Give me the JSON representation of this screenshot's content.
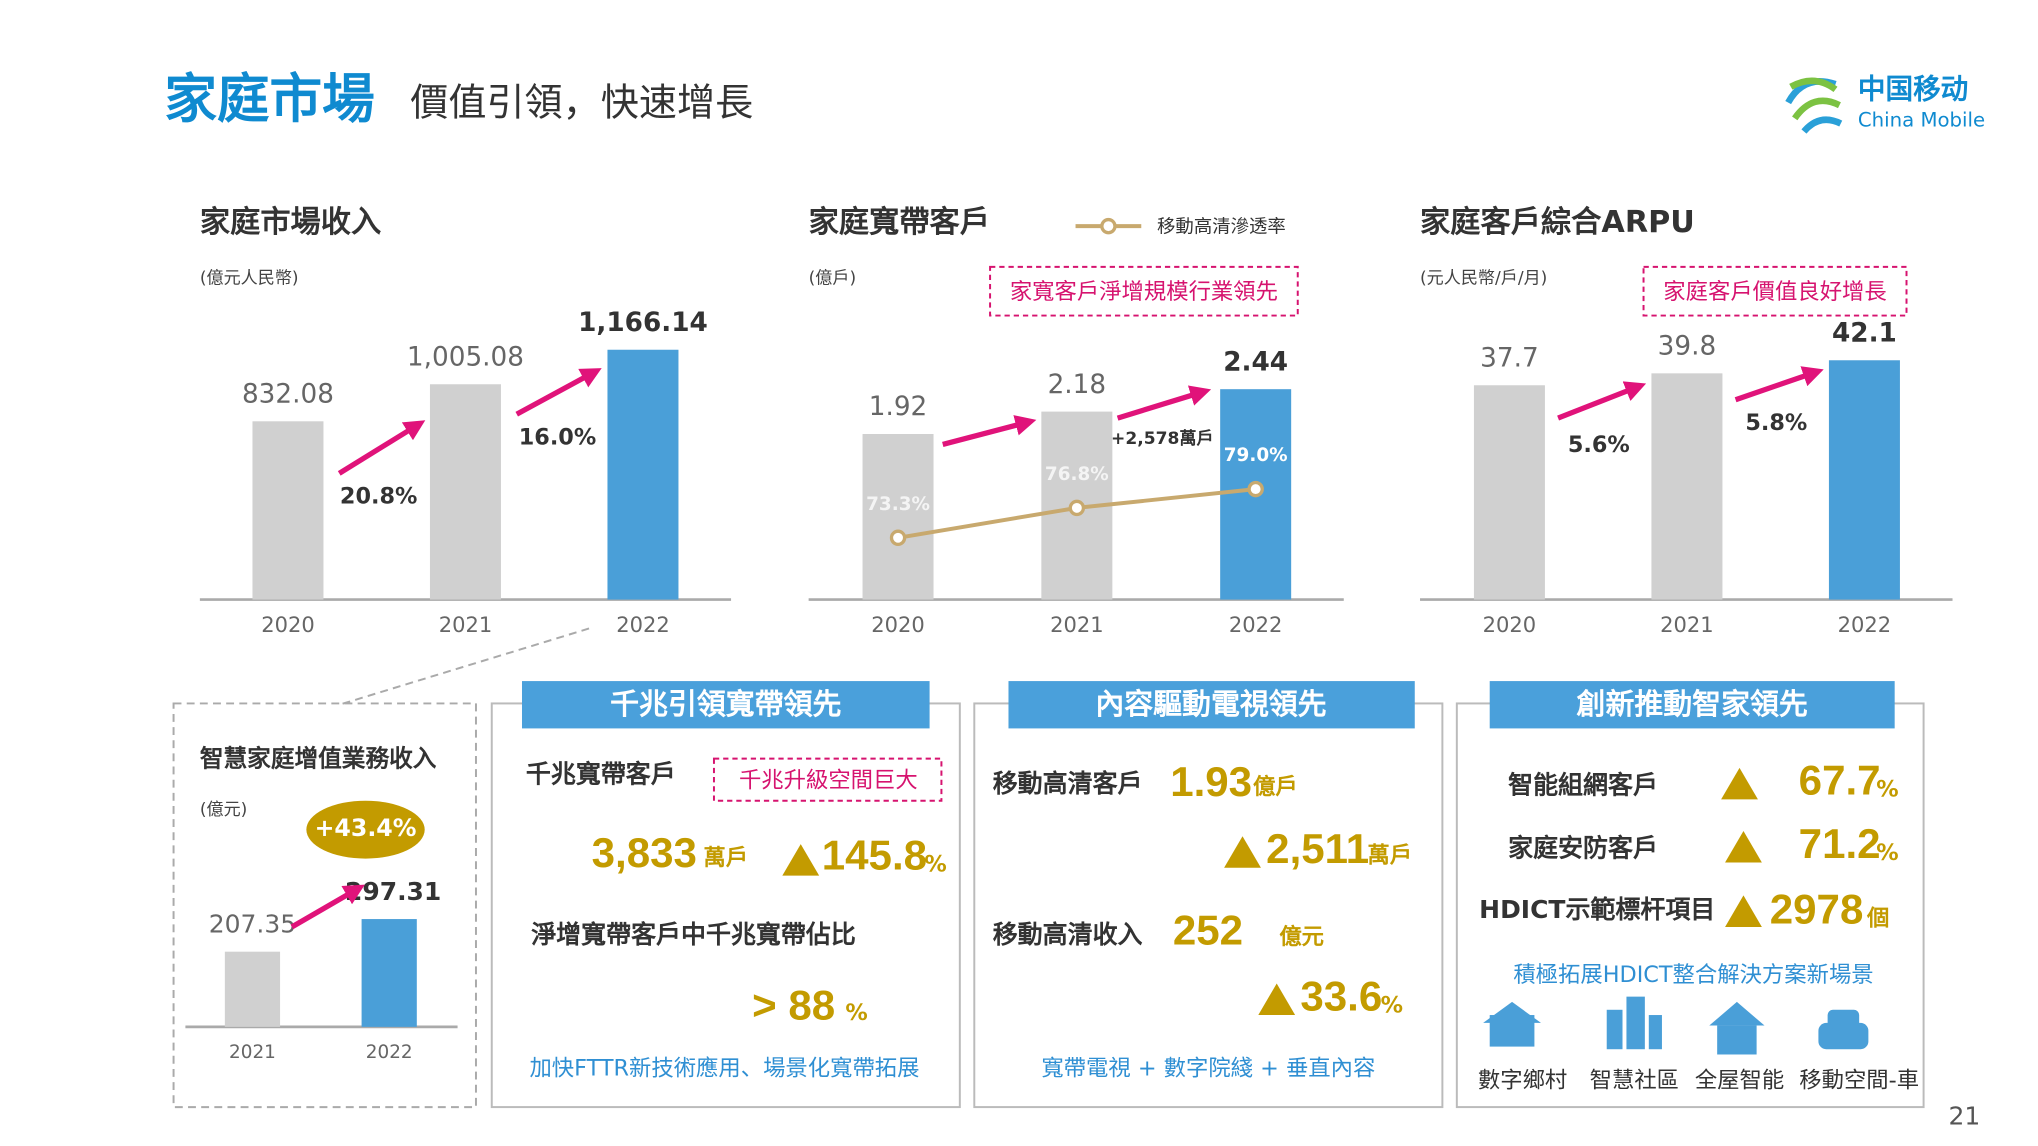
{
  "header": {
    "title": "家庭市場",
    "subtitle": "價值引領，快速增長",
    "logo_cn": "中国移动",
    "logo_en": "China Mobile",
    "page": "21"
  },
  "chart_data": [
    {
      "type": "bar",
      "title": "家庭市場收入",
      "subtitle": "(億元人民幣)",
      "categories": [
        "2020",
        "2021",
        "2022"
      ],
      "values": [
        832.08,
        1005.08,
        1166.14
      ],
      "value_labels": [
        "832.08",
        "1,005.08",
        "1,166.14"
      ],
      "colors": [
        "#d0d0d0",
        "#d0d0d0",
        "#4a9fd8"
      ],
      "annotations": [
        "20.8%",
        "16.0%"
      ]
    },
    {
      "type": "combo",
      "title": "家庭寬帶客戶",
      "subtitle": "(億戶)",
      "callout": "家寬客戶淨增規模行業領先",
      "categories": [
        "2020",
        "2021",
        "2022"
      ],
      "series": [
        {
          "type": "bar",
          "values": [
            1.92,
            2.18,
            2.44
          ],
          "colors": [
            "#d0d0d0",
            "#d0d0d0",
            "#4a9fd8"
          ]
        },
        {
          "name": "移動高清滲透率",
          "type": "line",
          "axis": "y2",
          "color": "#c8a96e",
          "values": [
            73.3,
            76.8,
            79.0
          ],
          "value_labels": [
            "73.3%",
            "76.8%",
            "79.0%"
          ]
        }
      ],
      "annotations": [
        "+2,578萬戶"
      ]
    },
    {
      "type": "bar",
      "title": "家庭客戶綜合ARPU",
      "subtitle": "(元人民幣/戶/月)",
      "callout": "家庭客戶價值良好增長",
      "categories": [
        "2020",
        "2021",
        "2022"
      ],
      "values": [
        37.7,
        39.8,
        42.1
      ],
      "colors": [
        "#d0d0d0",
        "#d0d0d0",
        "#4a9fd8"
      ],
      "annotations": [
        "5.6%",
        "5.8%"
      ]
    },
    {
      "type": "bar",
      "title": "智慧家庭增值業務收入",
      "subtitle": "(億元)",
      "categories": [
        "2021",
        "2022"
      ],
      "values": [
        207.35,
        297.31
      ],
      "colors": [
        "#d0d0d0",
        "#4a9fd8"
      ],
      "annotations": [
        "+43.4%"
      ]
    }
  ],
  "panels": [
    {
      "title": "千兆引領寬帶領先",
      "items": [
        "千兆寬帶客戶",
        "千兆升級空間巨大",
        "3,833",
        "萬戶",
        "145.8",
        "%",
        "淨增寬帶客戶中千兆寬帶佔比",
        "> 88",
        "%"
      ],
      "footer": "加快FTTR新技術應用、場景化寬帶拓展"
    },
    {
      "title": "內容驅動電視領先",
      "items": [
        "移動高清客戶",
        "1.93",
        "億戶",
        "2,511",
        "萬戶",
        "移動高清收入",
        "252",
        "億元",
        "33.6",
        "%"
      ],
      "footer": "寬帶電視 + 數字院綫 + 垂直內容"
    },
    {
      "title": "創新推動智家領先",
      "items": [
        "智能組網客戶",
        "67.7",
        "%",
        "家庭安防客戶",
        "71.2",
        "%",
        "HDICT示範標杆項目",
        "2978",
        "個"
      ],
      "subtitle": "積極拓展HDICT整合解決方案新場景",
      "scenes": [
        "數字鄉村",
        "智慧社區",
        "全屋智能",
        "移動空間-車"
      ]
    }
  ]
}
